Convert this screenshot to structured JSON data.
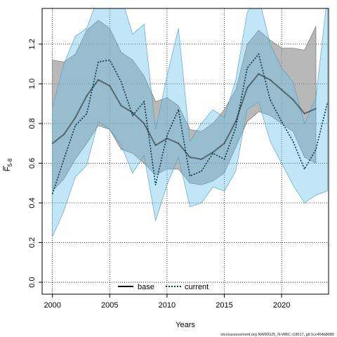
{
  "chart_data": {
    "type": "line",
    "title": "",
    "xlabel": "Years",
    "ylabel_main": "F",
    "ylabel_sub": "5-8",
    "xlim": [
      1999.1,
      2024.1
    ],
    "ylim": [
      -0.06,
      1.38
    ],
    "xticks": [
      2000,
      2005,
      2010,
      2015,
      2020
    ],
    "yticks": [
      0.0,
      0.2,
      0.4,
      0.6,
      0.8,
      1.0,
      1.2
    ],
    "ytick_labels": [
      "0.0",
      "0.2",
      "0.4",
      "0.6",
      "0.8",
      "1.0",
      "1.2"
    ],
    "grid": true,
    "legend_position": "bottom-center",
    "series": [
      {
        "name": "base",
        "color": "#000000",
        "band_color": "#9a9a9a",
        "x": [
          2000,
          2001,
          2002,
          2003,
          2004,
          2005,
          2006,
          2007,
          2008,
          2009,
          2010,
          2011,
          2012,
          2013,
          2014,
          2015,
          2016,
          2017,
          2018,
          2019,
          2020,
          2021,
          2022,
          2023
        ],
        "values": [
          0.7,
          0.745,
          0.83,
          0.94,
          1.02,
          0.99,
          0.89,
          0.855,
          0.8,
          0.69,
          0.725,
          0.7,
          0.63,
          0.62,
          0.655,
          0.7,
          0.81,
          0.98,
          1.05,
          1.02,
          0.97,
          0.92,
          0.85,
          0.875
        ],
        "lower": [
          0.46,
          0.52,
          0.62,
          0.7,
          0.79,
          0.77,
          0.67,
          0.65,
          0.6,
          0.54,
          0.57,
          0.57,
          0.5,
          0.49,
          0.51,
          0.55,
          0.68,
          0.81,
          0.86,
          0.84,
          0.8,
          0.76,
          0.63,
          0.6
        ],
        "upper": [
          1.12,
          1.11,
          1.15,
          1.27,
          1.32,
          1.28,
          1.16,
          1.12,
          1.04,
          0.91,
          0.93,
          0.89,
          0.77,
          0.76,
          0.8,
          0.87,
          0.97,
          1.2,
          1.27,
          1.22,
          1.18,
          1.18,
          1.17,
          1.29
        ]
      },
      {
        "name": "current",
        "color": "#00364f",
        "band_color": "#6cc4ec",
        "x": [
          2000,
          2001,
          2002,
          2003,
          2004,
          2005,
          2006,
          2007,
          2008,
          2009,
          2010,
          2011,
          2012,
          2013,
          2014,
          2015,
          2016,
          2017,
          2018,
          2019,
          2020,
          2021,
          2022,
          2023,
          2024
        ],
        "values": [
          0.445,
          0.62,
          0.79,
          0.85,
          1.11,
          1.12,
          1.01,
          0.84,
          0.91,
          0.49,
          0.74,
          0.87,
          0.535,
          0.56,
          0.65,
          0.62,
          0.78,
          1.08,
          1.15,
          0.92,
          0.81,
          0.71,
          0.57,
          0.67,
          0.905
        ],
        "lower": [
          0.23,
          0.36,
          0.53,
          0.59,
          0.81,
          0.77,
          0.69,
          0.55,
          0.64,
          0.31,
          0.49,
          0.63,
          0.38,
          0.4,
          0.48,
          0.46,
          0.56,
          0.87,
          0.91,
          0.71,
          0.6,
          0.49,
          0.4,
          0.44,
          0.46
        ],
        "upper": [
          0.88,
          1.1,
          1.24,
          1.28,
          1.44,
          1.5,
          1.44,
          1.25,
          1.3,
          0.77,
          1.04,
          1.28,
          0.71,
          0.8,
          0.87,
          0.83,
          1.02,
          1.36,
          1.44,
          1.2,
          1.08,
          1.01,
          0.8,
          0.93,
          1.45
        ]
      }
    ]
  },
  "legend": {
    "base_label": "base",
    "current_label": "current"
  },
  "footer": "stockassessment.org NWWG25_N-WBC r18617, git:1cc464b8080"
}
